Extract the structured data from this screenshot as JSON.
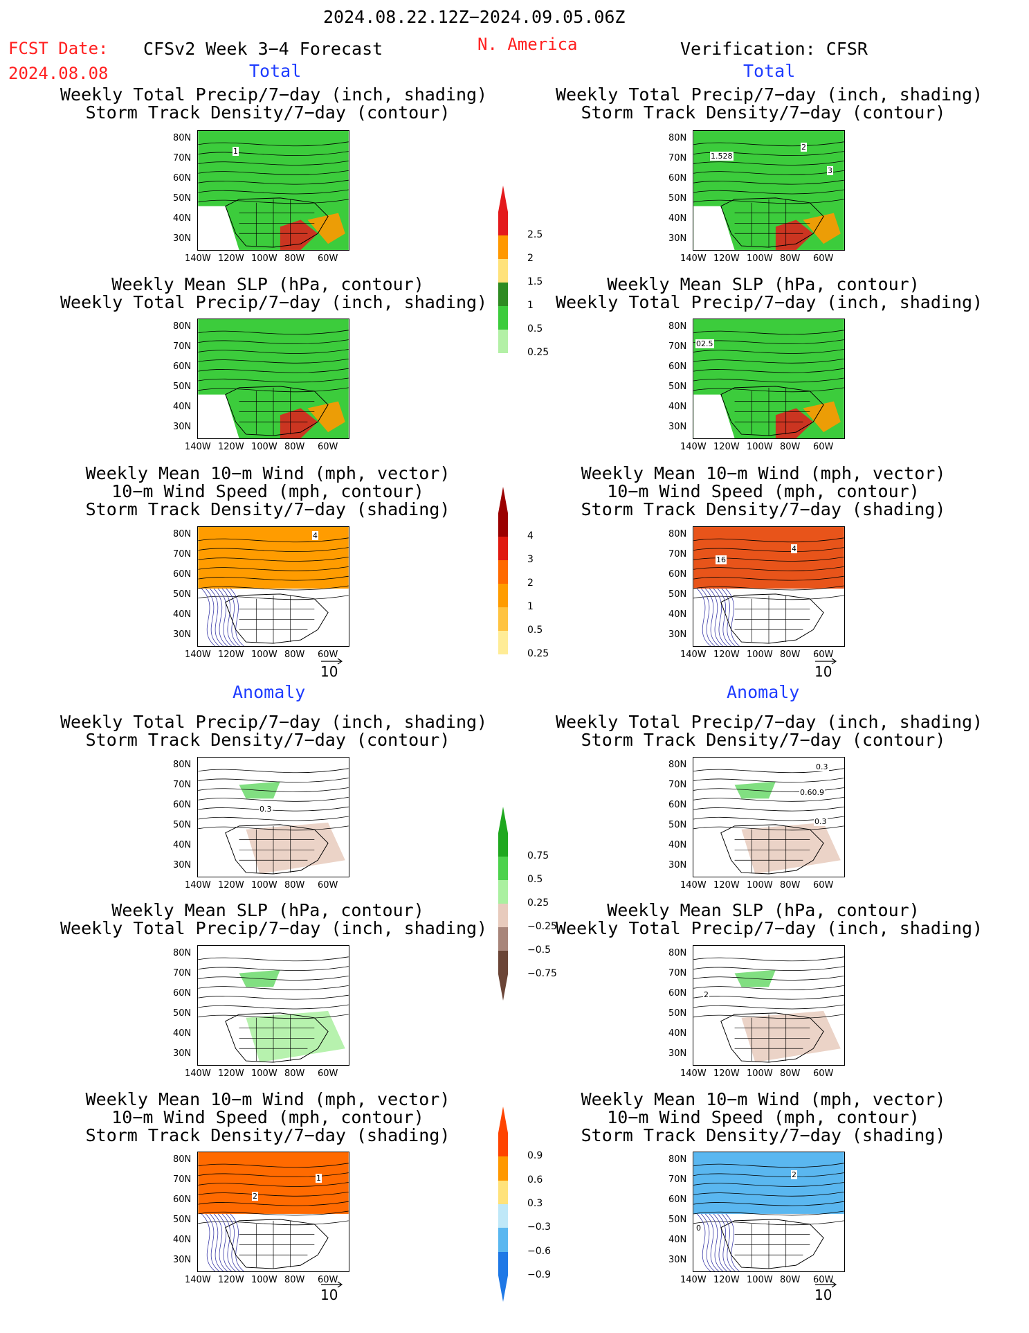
{
  "header": {
    "date_range": "2024.08.22.12Z−2024.09.05.06Z",
    "region": "N. America",
    "fcst_label": "FCST Date:",
    "fcst_date": "2024.08.08",
    "model": "CFSv2 Week 3−4 Forecast",
    "verification": "Verification: CFSR",
    "total": "Total",
    "anomaly": "Anomaly"
  },
  "titles": {
    "precip": [
      "Weekly Total Precip/7−day (inch, shading)",
      "Storm Track Density/7−day (contour)"
    ],
    "slp": [
      "Weekly Mean SLP (hPa, contour)",
      "Weekly Total Precip/7−day (inch, shading)"
    ],
    "wind": [
      "Weekly Mean 10−m Wind (mph, vector)",
      "10−m Wind Speed (mph, contour)",
      "Storm Track Density/7−day (shading)"
    ]
  },
  "axes": {
    "lat": [
      "80N",
      "70N",
      "60N",
      "50N",
      "40N",
      "30N"
    ],
    "lon": [
      "140W",
      "120W",
      "100W",
      "80W",
      "60W"
    ]
  },
  "vector_ref": "10",
  "colorbars": {
    "precip_total": {
      "labels": [
        "2.5",
        "2",
        "1.5",
        "1",
        "0.5",
        "0.25"
      ],
      "colors": [
        "#e41a1c",
        "#ff9800",
        "#ffe27a",
        "#2e8b22",
        "#3ccc3c",
        "#b3f0a6"
      ]
    },
    "storm_total": {
      "labels": [
        "4",
        "3",
        "2",
        "1",
        "0.5",
        "0.25"
      ],
      "colors": [
        "#9b0000",
        "#e01a10",
        "#ff6a00",
        "#ff9c00",
        "#ffc340",
        "#ffec96"
      ]
    },
    "precip_anom": {
      "labels": [
        "0.75",
        "0.5",
        "0.25",
        "−0.25",
        "−0.5",
        "−0.75"
      ],
      "colors": [
        "#1fa81f",
        "#4cd24c",
        "#aaf0a0",
        "#e8cbbd",
        "#a8857a",
        "#6b4537"
      ]
    },
    "storm_anom": {
      "labels": [
        "0.9",
        "0.6",
        "0.3",
        "−0.3",
        "−0.6",
        "−0.9"
      ],
      "colors": [
        "#ff4400",
        "#ff9800",
        "#ffe27a",
        "#bfe8f8",
        "#5ab7f0",
        "#1e78e6"
      ]
    }
  },
  "contour_labels": {
    "p1_left": "1",
    "p1_right_a": "1.528",
    "p1_right_b": "2",
    "p1_right_c": "3",
    "p2_right": "02.5",
    "p3_left": "4",
    "p3_right_a": "4",
    "p3_right_b": "16",
    "a1_left": "0.3",
    "a1_right_a": "0.3",
    "a1_right_b": "0.60.9",
    "a1_right_c": "0.3",
    "a2_right": "2",
    "a3_left_a": "2",
    "a3_left_b": "1",
    "a3_right_a": "2",
    "a3_right_b": "0"
  }
}
